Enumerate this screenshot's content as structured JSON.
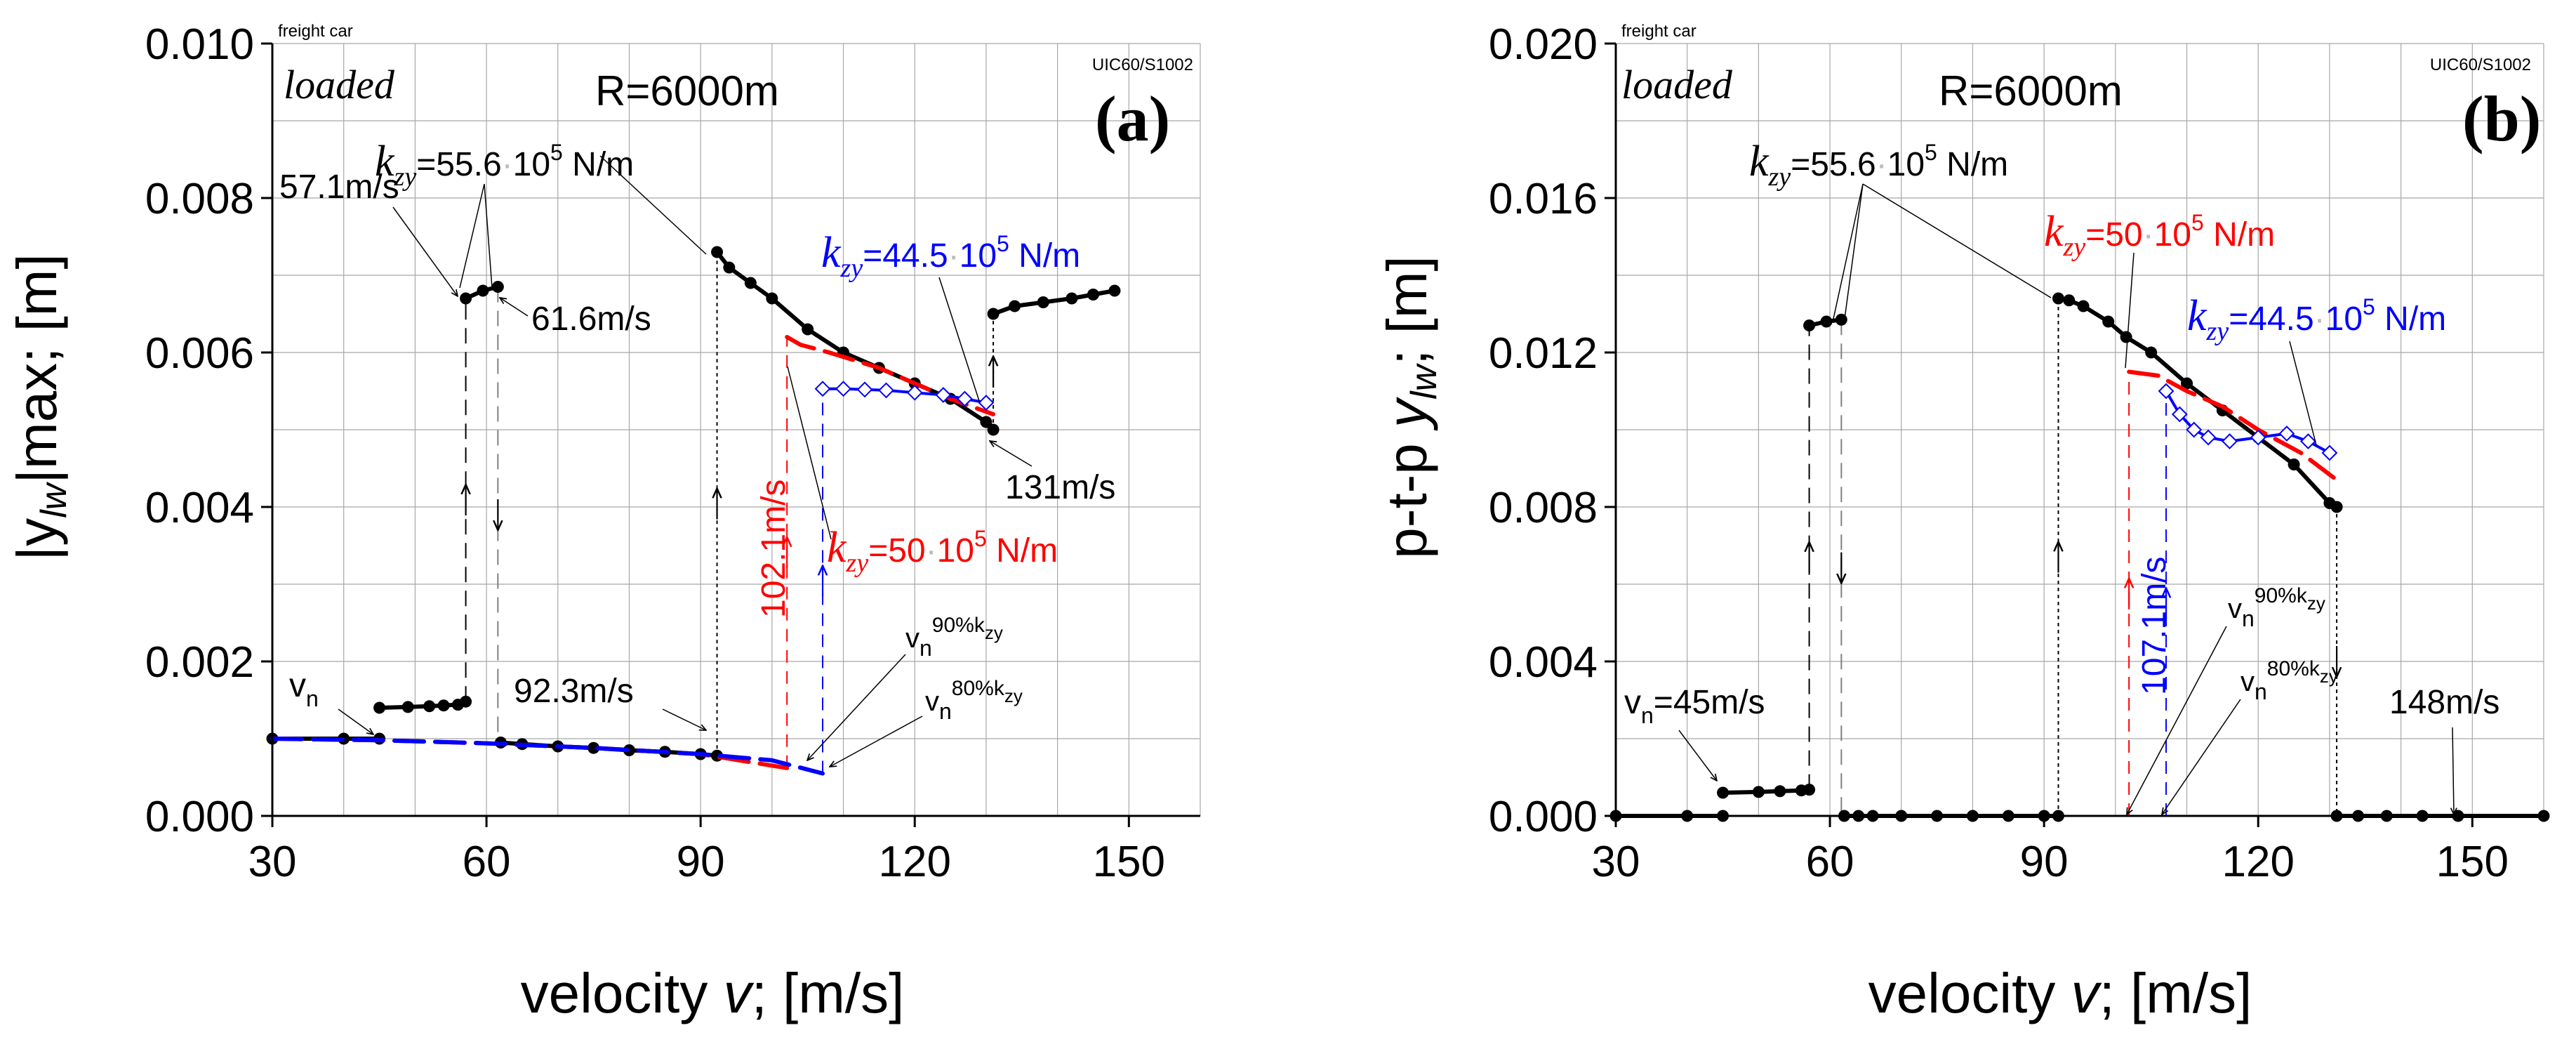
{
  "chart_data": [
    {
      "id": "a",
      "type": "line",
      "panel_label": "(a)",
      "condition": "loaded",
      "radius_label": "R=6000m",
      "vehicle": "freight car",
      "profile": "UIC60/S1002",
      "xlabel": "velocity v; [m/s]",
      "xlabel_parts": [
        "velocity ",
        "v",
        "; [m/s]"
      ],
      "ylabel_parts": [
        "|y",
        "lw",
        "|max; [m]"
      ],
      "xlim": [
        30,
        160
      ],
      "ylim": [
        0,
        0.01
      ],
      "xticks": [
        "30",
        "60",
        "90",
        "120",
        "150"
      ],
      "xtick_values": [
        30,
        60,
        90,
        120,
        150
      ],
      "yticks": [
        "0.000",
        "0.002",
        "0.004",
        "0.006",
        "0.008",
        "0.010"
      ],
      "ytick_values": [
        0,
        0.002,
        0.004,
        0.006,
        0.008,
        0.01
      ],
      "series": [
        {
          "name": "kzy=55.6 (low branch)",
          "color": "#000000",
          "style": "solid",
          "marker": "dot",
          "x": [
            30,
            40,
            45
          ],
          "y": [
            0.001,
            0.001,
            0.001
          ]
        },
        {
          "name": "kzy=55.6 (elevated 45-57)",
          "color": "#000000",
          "style": "solid",
          "marker": "dot",
          "x": [
            45,
            49,
            52,
            54,
            56,
            57.1
          ],
          "y": [
            0.0014,
            0.00141,
            0.00142,
            0.00143,
            0.00144,
            0.00148
          ]
        },
        {
          "name": "kzy=55.6 (upper 57-62)",
          "color": "#000000",
          "style": "solid",
          "marker": "dot",
          "x": [
            57.1,
            59.5,
            61.6
          ],
          "y": [
            0.0067,
            0.0068,
            0.00685
          ]
        },
        {
          "name": "kzy=55.6 (low 62-92)",
          "color": "#000000",
          "style": "solid",
          "marker": "dot",
          "x": [
            62,
            65,
            70,
            75,
            80,
            85,
            90,
            92.3
          ],
          "y": [
            0.00095,
            0.00093,
            0.0009,
            0.00088,
            0.00085,
            0.00083,
            0.0008,
            0.00078
          ]
        },
        {
          "name": "kzy=55.6 (upper 92-131)",
          "color": "#000000",
          "style": "solid",
          "marker": "dot",
          "x": [
            92.3,
            94,
            97,
            100,
            105,
            110,
            115,
            120,
            125,
            130,
            131
          ],
          "y": [
            0.0073,
            0.0071,
            0.0069,
            0.0067,
            0.0063,
            0.006,
            0.0058,
            0.0056,
            0.0054,
            0.0051,
            0.005
          ]
        },
        {
          "name": "kzy=55.6 (upper 131-148)",
          "color": "#000000",
          "style": "solid",
          "marker": "dot",
          "x": [
            131,
            134,
            138,
            142,
            145,
            148
          ],
          "y": [
            0.0065,
            0.0066,
            0.00665,
            0.0067,
            0.00675,
            0.0068
          ]
        },
        {
          "name": "kzy=50 (upper)",
          "color": "#ff0000",
          "style": "dashed",
          "marker": "none",
          "x": [
            102.1,
            104,
            108,
            115,
            120,
            125,
            131
          ],
          "y": [
            0.0062,
            0.0061,
            0.006,
            0.0058,
            0.0056,
            0.0054,
            0.0052
          ]
        },
        {
          "name": "kzy=50 (low)",
          "color": "#ff0000",
          "style": "dashed",
          "marker": "none",
          "x": [
            30,
            45,
            60,
            75,
            90,
            102.1
          ],
          "y": [
            0.001,
            0.00098,
            0.00094,
            0.00088,
            0.0008,
            0.00062
          ]
        },
        {
          "name": "kzy=44.5 (upper)",
          "color": "#0000ff",
          "style": "solid",
          "marker": "diamond",
          "x": [
            107.1,
            110,
            113,
            116,
            120,
            124,
            127,
            130
          ],
          "y": [
            0.00553,
            0.00553,
            0.00552,
            0.00551,
            0.00548,
            0.00545,
            0.0054,
            0.00535
          ]
        },
        {
          "name": "kzy=44.5 (low)",
          "color": "#0000ff",
          "style": "dashed",
          "marker": "none",
          "x": [
            30,
            45,
            60,
            75,
            90,
            100,
            107.1
          ],
          "y": [
            0.001,
            0.00098,
            0.00094,
            0.00088,
            0.0008,
            0.00072,
            0.00055
          ]
        }
      ],
      "jumps": [
        {
          "x": 57.1,
          "y1": 0.00148,
          "y2": 0.0067,
          "dir": "up",
          "color": "#000000",
          "dash": "22 12"
        },
        {
          "x": 61.6,
          "y1": 0.00685,
          "y2": 0.00095,
          "dir": "down",
          "color": "#808080",
          "dash": "22 12"
        },
        {
          "x": 92.3,
          "y1": 0.00078,
          "y2": 0.0073,
          "dir": "up",
          "color": "#000000",
          "dash": "5 5"
        },
        {
          "x": 131,
          "y1": 0.005,
          "y2": 0.0065,
          "dir": "up",
          "color": "#000000",
          "dash": "5 5"
        },
        {
          "x": 102.1,
          "y1": 0.00062,
          "y2": 0.0062,
          "dir": "up",
          "color": "#ff0000",
          "dash": "18 12"
        },
        {
          "x": 107.1,
          "y1": 0.00055,
          "y2": 0.00553,
          "dir": "up",
          "color": "#0000ff",
          "dash": "18 12"
        }
      ],
      "annotations": {
        "v57": "57.1m/s",
        "v61": "61.6m/s",
        "v92": "92.3m/s",
        "v131": "131m/s",
        "v102": "102.1m/s",
        "vn": "v",
        "vn_sub": "n",
        "vn90": "v",
        "vn90_sub": "n",
        "vn90_sup": "90%k",
        "vn90_subsub": "zy",
        "vn80": "v",
        "vn80_sub": "n",
        "vn80_sup": "80%k",
        "vn80_subsub": "zy",
        "k556_k": "k",
        "k556_sub": "zy",
        "k556_val": "=55.6",
        "k556_dot": "·",
        "k556_rest1": "10",
        "k556_exp": "5",
        "k556_rest2": " N/m",
        "k445_k": "k",
        "k445_sub": "zy",
        "k445_val": "=44.5",
        "k445_dot": "·",
        "k445_rest1": "10",
        "k445_exp": "5",
        "k445_rest2": " N/m",
        "k50_k": "k",
        "k50_sub": "zy",
        "k50_val": "=50",
        "k50_dot": "·",
        "k50_rest1": "10",
        "k50_exp": "5",
        "k50_rest2": " N/m"
      }
    },
    {
      "id": "b",
      "type": "line",
      "panel_label": "(b)",
      "condition": "loaded",
      "radius_label": "R=6000m",
      "vehicle": "freight car",
      "profile": "UIC60/S1002",
      "xlabel": "velocity v; [m/s]",
      "xlabel_parts": [
        "velocity ",
        "v",
        "; [m/s]"
      ],
      "ylabel_parts": [
        "p-t-p ",
        "y",
        "lw",
        "; [m]"
      ],
      "xlim": [
        30,
        160
      ],
      "ylim": [
        0,
        0.02
      ],
      "xticks": [
        "30",
        "60",
        "90",
        "120",
        "150"
      ],
      "xtick_values": [
        30,
        60,
        90,
        120,
        150
      ],
      "yticks": [
        "0.000",
        "0.004",
        "0.008",
        "0.012",
        "0.016",
        "0.020"
      ],
      "ytick_values": [
        0,
        0.004,
        0.008,
        0.012,
        0.016,
        0.02
      ],
      "series": [
        {
          "name": "kzy=55.6 (zero 30-45)",
          "color": "#000000",
          "style": "solid",
          "marker": "dot",
          "x": [
            30,
            40,
            45
          ],
          "y": [
            0,
            0,
            0
          ]
        },
        {
          "name": "kzy=55.6 (45-57)",
          "color": "#000000",
          "style": "solid",
          "marker": "dot",
          "x": [
            45,
            50,
            53,
            56,
            57.1
          ],
          "y": [
            0.0006,
            0.00062,
            0.00064,
            0.00066,
            0.00068
          ]
        },
        {
          "name": "kzy=55.6 (upper 57-62)",
          "color": "#000000",
          "style": "solid",
          "marker": "dot",
          "x": [
            57.1,
            59.5,
            61.6
          ],
          "y": [
            0.0127,
            0.0128,
            0.01285
          ]
        },
        {
          "name": "kzy=55.6 (zero 62-92)",
          "color": "#000000",
          "style": "solid",
          "marker": "dot",
          "x": [
            62,
            64,
            66,
            70,
            75,
            80,
            85,
            90,
            92
          ],
          "y": [
            0,
            0,
            0,
            0,
            0,
            0,
            0,
            0,
            0
          ]
        },
        {
          "name": "kzy=55.6 (upper 92-131)",
          "color": "#000000",
          "style": "solid",
          "marker": "dot",
          "x": [
            92,
            93.5,
            95.5,
            99,
            101.5,
            105,
            110,
            115,
            120,
            125,
            130,
            131
          ],
          "y": [
            0.0134,
            0.01335,
            0.0132,
            0.0128,
            0.0124,
            0.012,
            0.0112,
            0.0105,
            0.0098,
            0.0091,
            0.0081,
            0.008
          ]
        },
        {
          "name": "kzy=55.6 (zero 131-148)",
          "color": "#000000",
          "style": "solid",
          "marker": "dot",
          "x": [
            131,
            134,
            138,
            143,
            148,
            160
          ],
          "y": [
            0,
            0,
            0,
            0,
            0,
            0
          ]
        },
        {
          "name": "kzy=50 (upper)",
          "color": "#ff0000",
          "style": "dashed",
          "marker": "none",
          "x": [
            101.9,
            106,
            110,
            115,
            120,
            126,
            131
          ],
          "y": [
            0.0115,
            0.0114,
            0.011,
            0.0106,
            0.01,
            0.0094,
            0.0087
          ]
        },
        {
          "name": "kzy=44.5 (upper)",
          "color": "#0000ff",
          "style": "solid",
          "marker": "diamond",
          "x": [
            107.1,
            109,
            111,
            113,
            116,
            120,
            124,
            127,
            130
          ],
          "y": [
            0.011,
            0.0104,
            0.01,
            0.0098,
            0.0097,
            0.0098,
            0.0099,
            0.0097,
            0.0094
          ]
        }
      ],
      "jumps": [
        {
          "x": 57.1,
          "y1": 0.00068,
          "y2": 0.0127,
          "dir": "up",
          "color": "#000000",
          "dash": "22 12"
        },
        {
          "x": 61.6,
          "y1": 0.01285,
          "y2": 0.0,
          "dir": "down",
          "color": "#808080",
          "dash": "22 12"
        },
        {
          "x": 92,
          "y1": 0.0,
          "y2": 0.0134,
          "dir": "up",
          "color": "#000000",
          "dash": "5 5"
        },
        {
          "x": 131,
          "y1": 0.008,
          "y2": 0.0,
          "dir": "down",
          "color": "#000000",
          "dash": "5 5"
        },
        {
          "x": 101.9,
          "y1": 0.0,
          "y2": 0.0115,
          "dir": "up",
          "color": "#ff0000",
          "dash": "18 12"
        },
        {
          "x": 107.1,
          "y1": 0.0,
          "y2": 0.011,
          "dir": "up",
          "color": "#0000ff",
          "dash": "18 12"
        }
      ],
      "annotations": {
        "vn45": "v",
        "vn45_sub": "n",
        "vn45_rest": "=45m/s",
        "v148": "148m/s",
        "v107": "107.1m/s",
        "vn90": "v",
        "vn90_sub": "n",
        "vn90_sup": "90%k",
        "vn90_subsub": "zy",
        "vn80": "v",
        "vn80_sub": "n",
        "vn80_sup": "80%k",
        "vn80_subsub": "zy",
        "k556_k": "k",
        "k556_sub": "zy",
        "k556_val": "=55.6",
        "k556_dot": "·",
        "k556_rest1": "10",
        "k556_exp": "5",
        "k556_rest2": " N/m",
        "k50_k": "k",
        "k50_sub": "zy",
        "k50_val": "=50",
        "k50_dot": "·",
        "k50_rest1": "10",
        "k50_exp": "5",
        "k50_rest2": " N/m",
        "k445_k": "k",
        "k445_sub": "zy",
        "k445_val": "=44.5",
        "k445_dot": "·",
        "k445_rest1": "10",
        "k445_exp": "5",
        "k445_rest2": " N/m"
      }
    }
  ]
}
